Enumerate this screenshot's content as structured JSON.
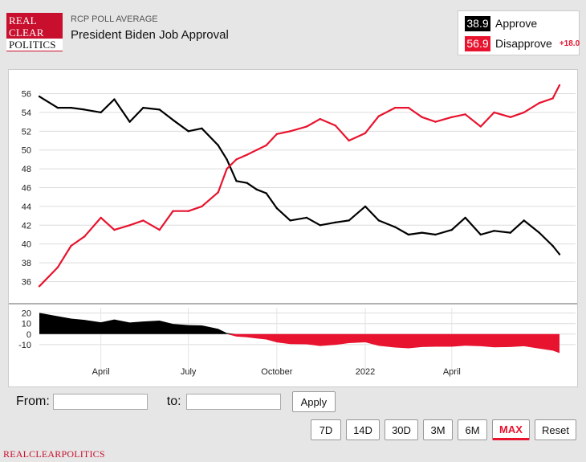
{
  "header": {
    "logo_lines": [
      "REAL",
      "CLEAR",
      "POLITICS"
    ],
    "kicker": "RCP POLL AVERAGE",
    "title": "President Biden Job Approval"
  },
  "legend": {
    "approve": {
      "value": "38.9",
      "label": "Approve"
    },
    "disapprove": {
      "value": "56.9",
      "label": "Disapprove"
    },
    "spread": "+18.0"
  },
  "controls": {
    "from_label": "From:",
    "to_label": "to:",
    "from_value": "",
    "to_value": "",
    "apply_label": "Apply",
    "ranges": [
      "7D",
      "14D",
      "30D",
      "3M",
      "6M",
      "MAX",
      "Reset"
    ],
    "active_range": "MAX"
  },
  "footer": {
    "text": "REALCLEARPOLITICS"
  },
  "colors": {
    "approve": "#000000",
    "disapprove": "#e8132e",
    "brand": "#c8102e"
  },
  "chart_data": {
    "type": "line",
    "x_tick_labels": [
      "April",
      "July",
      "October",
      "2022",
      "April"
    ],
    "y_ticks": [
      36,
      38,
      40,
      42,
      44,
      46,
      48,
      50,
      52,
      54,
      56
    ],
    "ylim": [
      34.5,
      57.5
    ],
    "grid": true,
    "spread_panel": {
      "type": "area",
      "y_ticks": [
        20,
        10,
        0,
        -10
      ],
      "ylim": [
        -20,
        22
      ]
    },
    "x": [
      "2021-01-27",
      "2021-02-15",
      "2021-03-01",
      "2021-03-15",
      "2021-04-01",
      "2021-04-15",
      "2021-05-01",
      "2021-05-15",
      "2021-06-01",
      "2021-06-15",
      "2021-07-01",
      "2021-07-15",
      "2021-08-01",
      "2021-08-10",
      "2021-08-20",
      "2021-08-31",
      "2021-09-10",
      "2021-09-20",
      "2021-10-01",
      "2021-10-15",
      "2021-11-01",
      "2021-11-15",
      "2021-12-01",
      "2021-12-15",
      "2022-01-01",
      "2022-01-15",
      "2022-02-01",
      "2022-02-15",
      "2022-03-01",
      "2022-03-15",
      "2022-04-01",
      "2022-04-15",
      "2022-05-01",
      "2022-05-15",
      "2022-06-01",
      "2022-06-15",
      "2022-07-01",
      "2022-07-15",
      "2022-07-22"
    ],
    "series": [
      {
        "name": "Approve",
        "values": [
          55.7,
          54.5,
          54.5,
          54.3,
          54.0,
          55.4,
          53.0,
          54.5,
          54.3,
          53.2,
          52.0,
          52.3,
          50.5,
          49.0,
          46.7,
          46.5,
          45.8,
          45.4,
          43.8,
          42.5,
          42.8,
          42.0,
          42.3,
          42.5,
          44.0,
          42.5,
          41.8,
          41.0,
          41.2,
          41.0,
          41.5,
          42.8,
          41.0,
          41.4,
          41.2,
          42.5,
          41.2,
          39.8,
          38.9
        ]
      },
      {
        "name": "Disapprove",
        "values": [
          35.5,
          37.5,
          39.8,
          40.8,
          42.8,
          41.5,
          42.0,
          42.5,
          41.5,
          43.5,
          43.5,
          44.0,
          45.5,
          48.0,
          49.0,
          49.5,
          50.0,
          50.5,
          51.7,
          52.0,
          52.5,
          53.3,
          52.6,
          51.0,
          51.8,
          53.6,
          54.5,
          54.5,
          53.5,
          53.0,
          53.5,
          53.8,
          52.5,
          54.0,
          53.5,
          54.0,
          55.0,
          55.5,
          56.9
        ]
      }
    ]
  }
}
